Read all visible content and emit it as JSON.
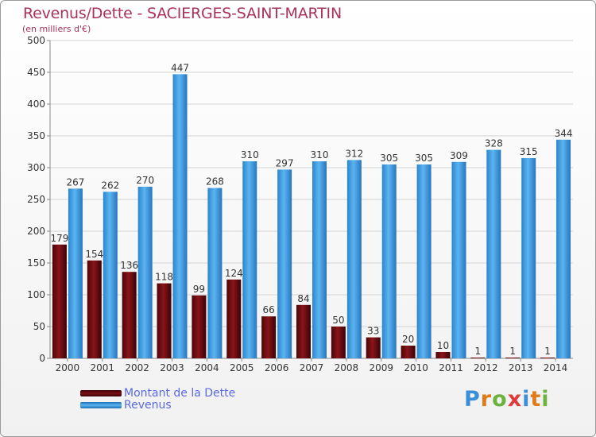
{
  "title": "Revenus/Dette - SACIERGES-SAINT-MARTIN",
  "subtitle": "(en milliers d'€)",
  "logo": {
    "text": "Proxiti",
    "colors": [
      "#3a8fd8",
      "#e07b1a",
      "#6cb33e",
      "#e03a3a",
      "#3a8fd8",
      "#e07b1a",
      "#6cb33e"
    ]
  },
  "chart_data": {
    "type": "bar",
    "categories": [
      "2000",
      "2001",
      "2002",
      "2003",
      "2004",
      "2005",
      "2006",
      "2007",
      "2008",
      "2009",
      "2010",
      "2011",
      "2012",
      "2013",
      "2014"
    ],
    "series": [
      {
        "name": "Montant de la Dette",
        "color": "#7a0e14",
        "values": [
          179,
          154,
          136,
          118,
          99,
          124,
          66,
          84,
          50,
          33,
          20,
          10,
          1,
          1,
          1
        ]
      },
      {
        "name": "Revenus",
        "color": "#3d9fe6",
        "values": [
          267,
          262,
          270,
          447,
          268,
          310,
          297,
          310,
          312,
          305,
          305,
          309,
          328,
          315,
          344
        ]
      }
    ],
    "ylim": [
      0,
      500
    ],
    "yticks": [
      0,
      50,
      100,
      150,
      200,
      250,
      300,
      350,
      400,
      450,
      500
    ],
    "grid": true,
    "legend": "bottom-left"
  }
}
